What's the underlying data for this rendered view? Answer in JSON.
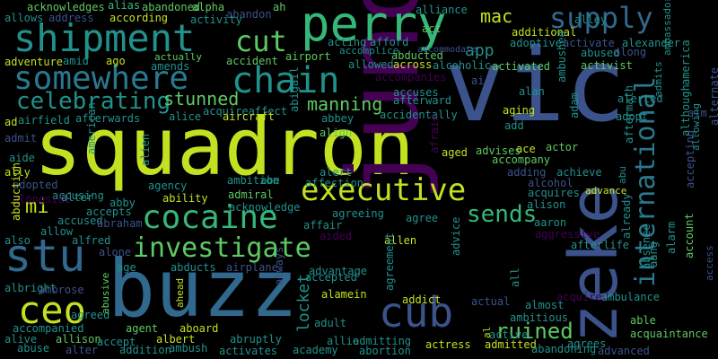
{
  "background": "#000000",
  "palette": {
    "lime": "#c3e021",
    "green": "#5ec962",
    "teal": "#21918c",
    "blue": "#3b528b",
    "purple": "#440154"
  },
  "words": [
    {
      "text": "squadron",
      "color": "#c3e021"
    },
    {
      "text": "vic",
      "color": "#3b528b"
    },
    {
      "text": "juno",
      "color": "#440154"
    },
    {
      "text": "buzz",
      "color": "#31688e"
    },
    {
      "text": "zeke",
      "color": "#3b528b"
    },
    {
      "text": "perry",
      "color": "#35b779"
    },
    {
      "text": "shipment",
      "color": "#21918c"
    },
    {
      "text": "supply",
      "color": "#31688e"
    },
    {
      "text": "somewhere",
      "color": "#2a788e"
    },
    {
      "text": "chain",
      "color": "#21918c"
    },
    {
      "text": "cut",
      "color": "#5ec962"
    },
    {
      "text": "international",
      "color": "#2a788e"
    },
    {
      "text": "executive",
      "color": "#c3e021"
    },
    {
      "text": "cocaine",
      "color": "#35b779"
    },
    {
      "text": "stu",
      "color": "#31688e"
    },
    {
      "text": "investigate",
      "color": "#5ec962"
    },
    {
      "text": "sends",
      "color": "#35b779"
    },
    {
      "text": "ceo",
      "color": "#c3e021"
    },
    {
      "text": "cub",
      "color": "#3b528b"
    },
    {
      "text": "celebrating",
      "color": "#21918c"
    },
    {
      "text": "ruined",
      "color": "#5ec962"
    },
    {
      "text": "mac",
      "color": "#c3e021"
    },
    {
      "text": "mi",
      "color": "#c3e021"
    },
    {
      "text": "manning",
      "color": "#5ec962"
    },
    {
      "text": "stunned",
      "color": "#5ec962"
    },
    {
      "text": "locket",
      "color": "#21918c"
    },
    {
      "text": "app",
      "color": "#21918c"
    },
    {
      "text": "acknowledges",
      "color": "#5ec962"
    },
    {
      "text": "alias",
      "color": "#35b779"
    },
    {
      "text": "abandoned",
      "color": "#5ec962"
    },
    {
      "text": "alpha",
      "color": "#5ec962"
    },
    {
      "text": "abandon",
      "color": "#3b528b"
    },
    {
      "text": "ah",
      "color": "#5ec962"
    },
    {
      "text": "alliance",
      "color": "#21918c"
    },
    {
      "text": "allows",
      "color": "#21918c"
    },
    {
      "text": "address",
      "color": "#3b528b"
    },
    {
      "text": "according",
      "color": "#c3e021"
    },
    {
      "text": "activity",
      "color": "#21918c"
    },
    {
      "text": "act",
      "color": "#5ec962"
    },
    {
      "text": "additional",
      "color": "#c3e021"
    },
    {
      "text": "alley",
      "color": "#21918c"
    },
    {
      "text": "activate",
      "color": "#3b528b"
    },
    {
      "text": "alexander",
      "color": "#21918c"
    },
    {
      "text": "ambassador",
      "color": "#21918c"
    },
    {
      "text": "acting",
      "color": "#21918c"
    },
    {
      "text": "afford",
      "color": "#21918c"
    },
    {
      "text": "adoptive",
      "color": "#21918c"
    },
    {
      "text": "abused",
      "color": "#21918c"
    },
    {
      "text": "along",
      "color": "#3b528b"
    },
    {
      "text": "accommodate",
      "color": "#3b528b"
    },
    {
      "text": "accomplice",
      "color": "#21918c"
    },
    {
      "text": "adventure",
      "color": "#c3e021"
    },
    {
      "text": "amid",
      "color": "#21918c"
    },
    {
      "text": "ago",
      "color": "#c3e021"
    },
    {
      "text": "actually",
      "color": "#5ec962"
    },
    {
      "text": "amends",
      "color": "#21918c"
    },
    {
      "text": "accident",
      "color": "#5ec962"
    },
    {
      "text": "airport",
      "color": "#5ec962"
    },
    {
      "text": "abducted",
      "color": "#5ec962"
    },
    {
      "text": "allowed",
      "color": "#21918c"
    },
    {
      "text": "across",
      "color": "#c3e021"
    },
    {
      "text": "alcoholic",
      "color": "#21918c"
    },
    {
      "text": "activated",
      "color": "#5ec962"
    },
    {
      "text": "ambushed",
      "color": "#21918c"
    },
    {
      "text": "activist",
      "color": "#5ec962"
    },
    {
      "text": "admits",
      "color": "#21918c"
    },
    {
      "text": "america",
      "color": "#21918c"
    },
    {
      "text": "accompanies",
      "color": "#440154"
    },
    {
      "text": "accuses",
      "color": "#21918c"
    },
    {
      "text": "air",
      "color": "#3b528b"
    },
    {
      "text": "alan",
      "color": "#21918c"
    },
    {
      "text": "afterward",
      "color": "#21918c"
    },
    {
      "text": "alerted",
      "color": "#21918c"
    },
    {
      "text": "ad",
      "color": "#c3e021"
    },
    {
      "text": "airfield",
      "color": "#21918c"
    },
    {
      "text": "afterwards",
      "color": "#21918c"
    },
    {
      "text": "alice",
      "color": "#21918c"
    },
    {
      "text": "acquireaffect",
      "color": "#21918c"
    },
    {
      "text": "aircraft",
      "color": "#c3e021"
    },
    {
      "text": "abigail",
      "color": "#21918c"
    },
    {
      "text": "abbey",
      "color": "#21918c"
    },
    {
      "text": "accidentally",
      "color": "#21918c"
    },
    {
      "text": "aging",
      "color": "#c3e021"
    },
    {
      "text": "adam",
      "color": "#21918c"
    },
    {
      "text": "adopt",
      "color": "#21918c"
    },
    {
      "text": "aim",
      "color": "#3b528b"
    },
    {
      "text": "although",
      "color": "#21918c"
    },
    {
      "text": "alternate",
      "color": "#3b528b"
    },
    {
      "text": "admit",
      "color": "#3b528b"
    },
    {
      "text": "american",
      "color": "#21918c"
    },
    {
      "text": "add",
      "color": "#21918c"
    },
    {
      "text": "align",
      "color": "#5ec962"
    },
    {
      "text": "ace",
      "color": "#c3e021"
    },
    {
      "text": "actor",
      "color": "#5ec962"
    },
    {
      "text": "advises",
      "color": "#5ec962"
    },
    {
      "text": "afraid",
      "color": "#440154"
    },
    {
      "text": "aged",
      "color": "#c3e021"
    },
    {
      "text": "accompany",
      "color": "#5ec962"
    },
    {
      "text": "aide",
      "color": "#21918c"
    },
    {
      "text": "alert",
      "color": "#21918c"
    },
    {
      "text": "adding",
      "color": "#3b528b"
    },
    {
      "text": "achieve",
      "color": "#21918c"
    },
    {
      "text": "aftermath",
      "color": "#21918c"
    },
    {
      "text": "accepting",
      "color": "#3b528b"
    },
    {
      "text": "allowing",
      "color": "#21918c"
    },
    {
      "text": "ally",
      "color": "#c3e021"
    },
    {
      "text": "alien",
      "color": "#21918c"
    },
    {
      "text": "ambition",
      "color": "#21918c"
    },
    {
      "text": "abe",
      "color": "#21918c"
    },
    {
      "text": "affection",
      "color": "#21918c"
    },
    {
      "text": "alcohol",
      "color": "#3b528b"
    },
    {
      "text": "adopted",
      "color": "#3b528b"
    },
    {
      "text": "agency",
      "color": "#21918c"
    },
    {
      "text": "accusing",
      "color": "#21918c"
    },
    {
      "text": "admiral",
      "color": "#5ec962"
    },
    {
      "text": "acquires",
      "color": "#21918c"
    },
    {
      "text": "advance",
      "color": "#c3e021"
    },
    {
      "text": "abu",
      "color": "#21918c"
    },
    {
      "text": "alongside",
      "color": "#440154"
    },
    {
      "text": "alter",
      "color": "#21918c"
    },
    {
      "text": "ability",
      "color": "#c3e021"
    },
    {
      "text": "acknowledge",
      "color": "#21918c"
    },
    {
      "text": "alison",
      "color": "#21918c"
    },
    {
      "text": "accepts",
      "color": "#21918c"
    },
    {
      "text": "abby",
      "color": "#21918c"
    },
    {
      "text": "agreeing",
      "color": "#21918c"
    },
    {
      "text": "agree",
      "color": "#21918c"
    },
    {
      "text": "aaron",
      "color": "#21918c"
    },
    {
      "text": "abduction",
      "color": "#c3e021"
    },
    {
      "text": "accused",
      "color": "#21918c"
    },
    {
      "text": "allow",
      "color": "#21918c"
    },
    {
      "text": "abraham",
      "color": "#3b528b"
    },
    {
      "text": "affair",
      "color": "#21918c"
    },
    {
      "text": "aided",
      "color": "#440154"
    },
    {
      "text": "allen",
      "color": "#c3e021"
    },
    {
      "text": "aggressive",
      "color": "#440154"
    },
    {
      "text": "also",
      "color": "#21918c"
    },
    {
      "text": "alfred",
      "color": "#21918c"
    },
    {
      "text": "advice",
      "color": "#21918c"
    },
    {
      "text": "already",
      "color": "#21918c"
    },
    {
      "text": "aang",
      "color": "#21918c"
    },
    {
      "text": "afterlife",
      "color": "#21918c"
    },
    {
      "text": "absence",
      "color": "#21918c"
    },
    {
      "text": "alone",
      "color": "#3b528b"
    },
    {
      "text": "age",
      "color": "#21918c"
    },
    {
      "text": "abducts",
      "color": "#21918c"
    },
    {
      "text": "airplane",
      "color": "#3b528b"
    },
    {
      "text": "advantage",
      "color": "#21918c"
    },
    {
      "text": "alarm",
      "color": "#21918c"
    },
    {
      "text": "account",
      "color": "#5ec962"
    },
    {
      "text": "access",
      "color": "#3b528b"
    },
    {
      "text": "albright",
      "color": "#21918c"
    },
    {
      "text": "ambrose",
      "color": "#3b528b"
    },
    {
      "text": "ahead",
      "color": "#c3e021"
    },
    {
      "text": "accepted",
      "color": "#21918c"
    },
    {
      "text": "always",
      "color": "#3b528b"
    },
    {
      "text": "agreement",
      "color": "#21918c"
    },
    {
      "text": "all",
      "color": "#21918c"
    },
    {
      "text": "acquired",
      "color": "#440154"
    },
    {
      "text": "ambulance",
      "color": "#21918c"
    },
    {
      "text": "alamein",
      "color": "#c3e021"
    },
    {
      "text": "addict",
      "color": "#c3e021"
    },
    {
      "text": "actual",
      "color": "#3b528b"
    },
    {
      "text": "almost",
      "color": "#21918c"
    },
    {
      "text": "agreed",
      "color": "#21918c"
    },
    {
      "text": "abusive",
      "color": "#5ec962"
    },
    {
      "text": "adult",
      "color": "#21918c"
    },
    {
      "text": "ambitious",
      "color": "#21918c"
    },
    {
      "text": "able",
      "color": "#5ec962"
    },
    {
      "text": "accompanied",
      "color": "#21918c"
    },
    {
      "text": "agent",
      "color": "#5ec962"
    },
    {
      "text": "aboard",
      "color": "#c3e021"
    },
    {
      "text": "active",
      "color": "#21918c"
    },
    {
      "text": "acquaintance",
      "color": "#5ec962"
    },
    {
      "text": "alive",
      "color": "#21918c"
    },
    {
      "text": "allison",
      "color": "#5ec962"
    },
    {
      "text": "accept",
      "color": "#21918c"
    },
    {
      "text": "albert",
      "color": "#c3e021"
    },
    {
      "text": "abruptly",
      "color": "#21918c"
    },
    {
      "text": "allie",
      "color": "#21918c"
    },
    {
      "text": "admitting",
      "color": "#21918c"
    },
    {
      "text": "al",
      "color": "#c3e021"
    },
    {
      "text": "abuse",
      "color": "#21918c"
    },
    {
      "text": "alter",
      "color": "#3b528b"
    },
    {
      "text": "addition",
      "color": "#21918c"
    },
    {
      "text": "ambush",
      "color": "#21918c"
    },
    {
      "text": "activates",
      "color": "#21918c"
    },
    {
      "text": "academy",
      "color": "#21918c"
    },
    {
      "text": "abortion",
      "color": "#21918c"
    },
    {
      "text": "actress",
      "color": "#c3e021"
    },
    {
      "text": "admitted",
      "color": "#c3e021"
    },
    {
      "text": "abandoning",
      "color": "#21918c"
    },
    {
      "text": "agrees",
      "color": "#21918c"
    },
    {
      "text": "advanced",
      "color": "#3b528b"
    },
    {
      "text": "acid",
      "color": "#21918c"
    },
    {
      "text": "action",
      "color": "#21918c"
    }
  ]
}
